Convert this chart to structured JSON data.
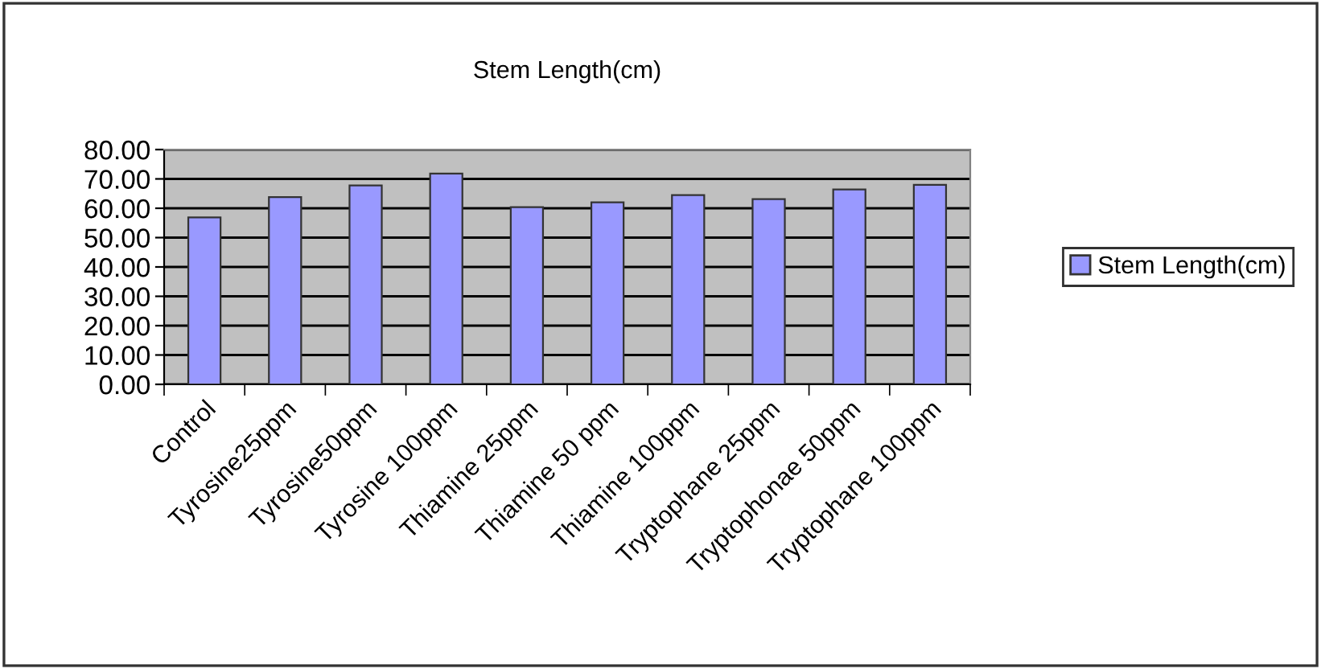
{
  "chart_data": {
    "type": "bar",
    "title": "Stem Length(cm)",
    "categories": [
      "Control",
      "Tyrosine25ppm",
      "Tyrosine50ppm",
      "Tyrosine 100ppm",
      "Thiamine 25ppm",
      "Thiamine 50 ppm",
      "Thiamine 100ppm",
      "Tryptophane 25ppm",
      "Tryptophonae 50ppm",
      "Tryptophane 100ppm"
    ],
    "series": [
      {
        "name": "Stem Length(cm)",
        "color": "#9999ff",
        "values": [
          56.9,
          63.8,
          67.8,
          71.8,
          60.4,
          62.0,
          64.5,
          63.1,
          66.4,
          68.0
        ]
      }
    ],
    "ylim": [
      0,
      80
    ],
    "yticks": [
      {
        "value": 0,
        "label": "0.00"
      },
      {
        "value": 10,
        "label": "10.00"
      },
      {
        "value": 20,
        "label": "20.00"
      },
      {
        "value": 30,
        "label": "30.00"
      },
      {
        "value": 40,
        "label": "40.00"
      },
      {
        "value": 50,
        "label": "50.00"
      },
      {
        "value": 60,
        "label": "60.00"
      },
      {
        "value": 70,
        "label": "70.00"
      },
      {
        "value": 80,
        "label": "80.00"
      }
    ],
    "grid": "y",
    "legend": "right"
  }
}
